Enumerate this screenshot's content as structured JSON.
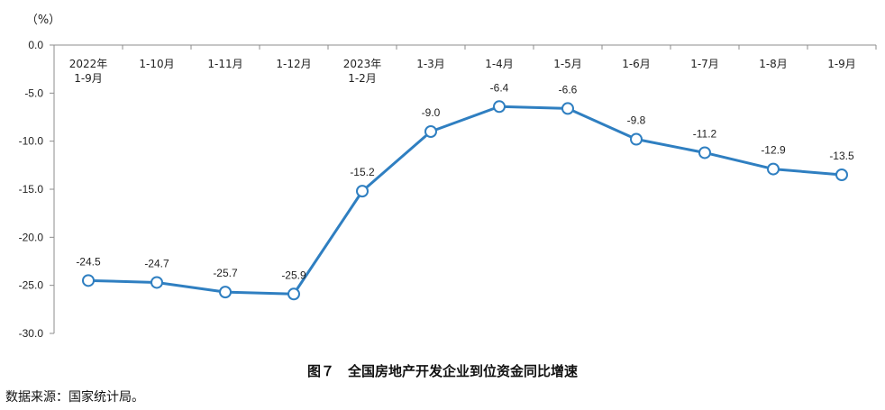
{
  "chart_data": {
    "type": "line",
    "unit_label": "（%）",
    "categories": [
      [
        "2022年",
        "1-9月"
      ],
      [
        "1-10月"
      ],
      [
        "1-11月"
      ],
      [
        "1-12月"
      ],
      [
        "2023年",
        "1-2月"
      ],
      [
        "1-3月"
      ],
      [
        "1-4月"
      ],
      [
        "1-5月"
      ],
      [
        "1-6月"
      ],
      [
        "1-7月"
      ],
      [
        "1-8月"
      ],
      [
        "1-9月"
      ]
    ],
    "values": [
      -24.5,
      -24.7,
      -25.7,
      -25.9,
      -15.2,
      -9.0,
      -6.4,
      -6.6,
      -9.8,
      -11.2,
      -12.9,
      -13.5
    ],
    "data_labels": [
      "-24.5",
      "-24.7",
      "-25.7",
      "-25.9",
      "-15.2",
      "-9.0",
      "-6.4",
      "-6.6",
      "-9.8",
      "-11.2",
      "-12.9",
      "-13.5"
    ],
    "y_ticks": [
      0,
      -5,
      -10,
      -15,
      -20,
      -25,
      -30
    ],
    "y_tick_labels": [
      "0.0",
      "-5.0",
      "-10.0",
      "-15.0",
      "-20.0",
      "-25.0",
      "-30.0"
    ],
    "ylim": [
      -30,
      0
    ],
    "line_color": "#2f7fc1",
    "grid": false,
    "legend": "none"
  },
  "caption": "图７　全国房地产开发企业到位资金同比增速",
  "source": "数据来源：国家统计局。"
}
